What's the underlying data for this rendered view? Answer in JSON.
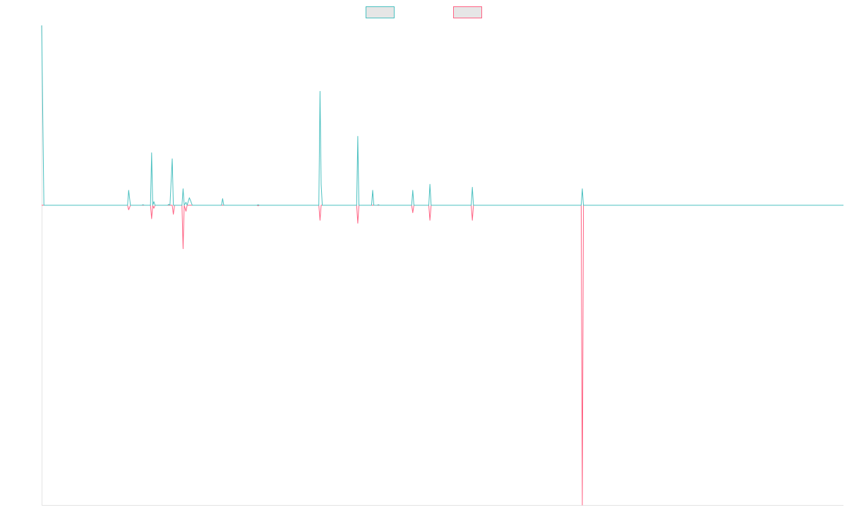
{
  "chart_data": {
    "type": "line",
    "title": "",
    "xlabel": "",
    "ylabel": "",
    "grid": false,
    "legend": {
      "position": "top-center"
    },
    "xlim": [
      0,
      700
    ],
    "ylim": [
      -100,
      60
    ],
    "series": [
      {
        "name": "",
        "color": "#4bc0c0",
        "points": [
          [
            0,
            60
          ],
          [
            2,
            0
          ],
          [
            75,
            0
          ],
          [
            76,
            5
          ],
          [
            77.5,
            0
          ],
          [
            87.5,
            0
          ],
          [
            88.5,
            0.2
          ],
          [
            89.5,
            0
          ],
          [
            95,
            0
          ],
          [
            96,
            17.5
          ],
          [
            97,
            0
          ],
          [
            98,
            1.2
          ],
          [
            99,
            0
          ],
          [
            110,
            0
          ],
          [
            111,
            0.3
          ],
          [
            112,
            0
          ],
          [
            114,
            15.5
          ],
          [
            115,
            0
          ],
          [
            122.5,
            0
          ],
          [
            123.5,
            5.5
          ],
          [
            124.5,
            0
          ],
          [
            126,
            1
          ],
          [
            127,
            0
          ],
          [
            129,
            2.5
          ],
          [
            130,
            1.5
          ],
          [
            131.5,
            0
          ],
          [
            157,
            0
          ],
          [
            158,
            2.2
          ],
          [
            159,
            0
          ],
          [
            188,
            0
          ],
          [
            189,
            0.2
          ],
          [
            190,
            0
          ],
          [
            242,
            0
          ],
          [
            243,
            38
          ],
          [
            244,
            7
          ],
          [
            245,
            0
          ],
          [
            275,
            0
          ],
          [
            276,
            23
          ],
          [
            277,
            0
          ],
          [
            288,
            0
          ],
          [
            289,
            5
          ],
          [
            290,
            0
          ],
          [
            293,
            0
          ],
          [
            294,
            0.2
          ],
          [
            295,
            0
          ],
          [
            323,
            0
          ],
          [
            324,
            5
          ],
          [
            325,
            0
          ],
          [
            338,
            0
          ],
          [
            339,
            7
          ],
          [
            340,
            0
          ],
          [
            375,
            0
          ],
          [
            376,
            6
          ],
          [
            377,
            0
          ],
          [
            471,
            0
          ],
          [
            472,
            5.5
          ],
          [
            473,
            0
          ],
          [
            700,
            0
          ]
        ]
      },
      {
        "name": "",
        "color": "#ff6384",
        "points": [
          [
            0,
            0
          ],
          [
            75,
            0
          ],
          [
            76,
            -1.5
          ],
          [
            77.5,
            0
          ],
          [
            95,
            0
          ],
          [
            96,
            -4.5
          ],
          [
            97,
            0
          ],
          [
            98,
            -1
          ],
          [
            99,
            0
          ],
          [
            114,
            0
          ],
          [
            115,
            -3
          ],
          [
            116,
            0
          ],
          [
            122.5,
            0
          ],
          [
            123.5,
            -14.5
          ],
          [
            124.5,
            0
          ],
          [
            126,
            -2
          ],
          [
            127,
            0
          ],
          [
            188,
            0
          ],
          [
            189,
            -0.2
          ],
          [
            190,
            0
          ],
          [
            242,
            0
          ],
          [
            243,
            -5
          ],
          [
            244,
            0
          ],
          [
            275,
            0
          ],
          [
            276,
            -6
          ],
          [
            277,
            0
          ],
          [
            323,
            0
          ],
          [
            324,
            -2.5
          ],
          [
            325,
            0
          ],
          [
            338,
            0
          ],
          [
            339,
            -5
          ],
          [
            340,
            0
          ],
          [
            375,
            0
          ],
          [
            376,
            -5
          ],
          [
            377,
            0
          ],
          [
            471,
            0
          ],
          [
            472,
            -100
          ],
          [
            473,
            0
          ],
          [
            700,
            0
          ]
        ]
      }
    ]
  }
}
